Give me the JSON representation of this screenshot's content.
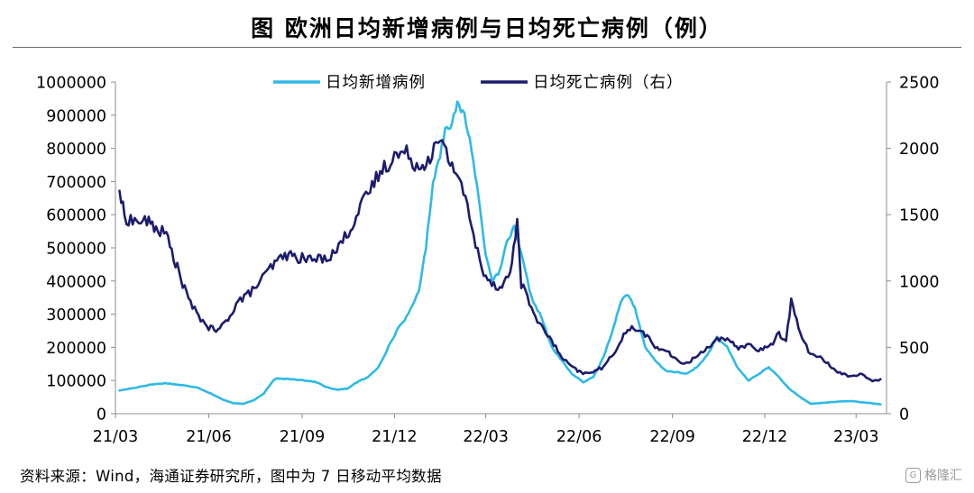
{
  "title": "图  欧洲日均新增病例与日均死亡病例（例）",
  "source": "资料来源：Wind，海通证券研究所，图中为 7 日移动平均数据",
  "watermark": "格隆汇",
  "colors": {
    "new_cases": "#2fb9e6",
    "deaths": "#1c1c6e",
    "axis": "#8c8c8c"
  },
  "chart_data": {
    "type": "line",
    "x_ticks": [
      "21/03",
      "21/06",
      "21/09",
      "21/12",
      "22/03",
      "22/06",
      "22/09",
      "22/12",
      "23/03"
    ],
    "x_range": [
      "2021-03-01",
      "2023-03-31"
    ],
    "y_left": {
      "min": 0,
      "max": 1000000,
      "ticks": [
        0,
        100000,
        200000,
        300000,
        400000,
        500000,
        600000,
        700000,
        800000,
        900000,
        1000000
      ]
    },
    "y_right": {
      "min": 0,
      "max": 2500,
      "ticks": [
        0,
        500,
        1000,
        1500,
        2000,
        2500
      ]
    },
    "legend_position": "top-center",
    "grid": false,
    "series": [
      {
        "name": "日均新增病例",
        "axis": "left",
        "x": [
          "2021-03-05",
          "2021-03-20",
          "2021-04-05",
          "2021-04-20",
          "2021-05-05",
          "2021-05-20",
          "2021-06-05",
          "2021-06-15",
          "2021-06-25",
          "2021-07-05",
          "2021-07-15",
          "2021-07-25",
          "2021-08-05",
          "2021-08-20",
          "2021-09-05",
          "2021-09-15",
          "2021-09-25",
          "2021-10-05",
          "2021-10-15",
          "2021-10-25",
          "2021-11-05",
          "2021-11-15",
          "2021-11-25",
          "2021-12-05",
          "2021-12-15",
          "2021-12-25",
          "2022-01-01",
          "2022-01-08",
          "2022-01-15",
          "2022-01-20",
          "2022-01-25",
          "2022-02-01",
          "2022-02-08",
          "2022-02-15",
          "2022-02-22",
          "2022-03-01",
          "2022-03-08",
          "2022-03-15",
          "2022-03-22",
          "2022-03-29",
          "2022-04-05",
          "2022-04-15",
          "2022-04-25",
          "2022-05-05",
          "2022-05-15",
          "2022-05-25",
          "2022-06-05",
          "2022-06-15",
          "2022-06-25",
          "2022-07-05",
          "2022-07-12",
          "2022-07-19",
          "2022-07-26",
          "2022-08-05",
          "2022-08-15",
          "2022-08-25",
          "2022-09-05",
          "2022-09-15",
          "2022-09-25",
          "2022-10-05",
          "2022-10-15",
          "2022-10-25",
          "2022-11-05",
          "2022-11-15",
          "2022-11-25",
          "2022-12-05",
          "2022-12-15",
          "2022-12-25",
          "2023-01-05",
          "2023-01-15",
          "2023-01-25",
          "2023-02-05",
          "2023-02-15",
          "2023-02-25",
          "2023-03-05",
          "2023-03-15",
          "2023-03-25"
        ],
        "values": [
          70000,
          78000,
          88000,
          92000,
          86000,
          80000,
          58000,
          42000,
          32000,
          30000,
          40000,
          60000,
          105000,
          105000,
          100000,
          95000,
          80000,
          72000,
          75000,
          95000,
          110000,
          140000,
          200000,
          260000,
          300000,
          370000,
          500000,
          700000,
          780000,
          860000,
          870000,
          930000,
          900000,
          800000,
          650000,
          480000,
          400000,
          430000,
          520000,
          560000,
          480000,
          350000,
          290000,
          200000,
          160000,
          120000,
          95000,
          110000,
          170000,
          260000,
          340000,
          360000,
          320000,
          200000,
          160000,
          130000,
          125000,
          120000,
          140000,
          175000,
          230000,
          200000,
          135000,
          100000,
          120000,
          140000,
          110000,
          75000,
          50000,
          30000,
          32000,
          35000,
          37000,
          38000,
          35000,
          32000,
          28000
        ]
      },
      {
        "name": "日均死亡病例（右）",
        "axis": "right",
        "x": [
          "2021-03-05",
          "2021-03-10",
          "2021-03-20",
          "2021-04-01",
          "2021-04-10",
          "2021-04-20",
          "2021-05-01",
          "2021-05-10",
          "2021-05-20",
          "2021-06-01",
          "2021-06-10",
          "2021-06-20",
          "2021-06-30",
          "2021-07-10",
          "2021-07-20",
          "2021-08-01",
          "2021-08-15",
          "2021-09-01",
          "2021-09-15",
          "2021-10-01",
          "2021-10-15",
          "2021-11-01",
          "2021-11-15",
          "2021-12-01",
          "2021-12-15",
          "2021-12-25",
          "2022-01-05",
          "2022-01-15",
          "2022-01-25",
          "2022-02-05",
          "2022-02-15",
          "2022-02-25",
          "2022-03-05",
          "2022-03-15",
          "2022-03-25",
          "2022-04-01",
          "2022-04-05",
          "2022-04-15",
          "2022-04-25",
          "2022-05-05",
          "2022-05-15",
          "2022-05-25",
          "2022-06-05",
          "2022-06-15",
          "2022-06-25",
          "2022-07-05",
          "2022-07-15",
          "2022-07-25",
          "2022-08-05",
          "2022-08-15",
          "2022-08-25",
          "2022-09-05",
          "2022-09-15",
          "2022-09-25",
          "2022-10-05",
          "2022-10-15",
          "2022-10-25",
          "2022-11-05",
          "2022-11-15",
          "2022-11-25",
          "2022-12-05",
          "2022-12-15",
          "2022-12-22",
          "2022-12-27",
          "2023-01-05",
          "2023-01-15",
          "2023-01-25",
          "2023-02-05",
          "2023-02-15",
          "2023-02-25",
          "2023-03-05",
          "2023-03-15",
          "2023-03-25"
        ],
        "values": [
          1680,
          1480,
          1450,
          1450,
          1400,
          1350,
          1100,
          900,
          750,
          650,
          620,
          720,
          850,
          900,
          980,
          1100,
          1200,
          1170,
          1160,
          1200,
          1350,
          1600,
          1800,
          1950,
          1960,
          1850,
          1950,
          2050,
          1900,
          1750,
          1400,
          1100,
          1000,
          950,
          1050,
          1450,
          980,
          800,
          650,
          550,
          420,
          350,
          300,
          320,
          350,
          450,
          600,
          650,
          600,
          500,
          480,
          400,
          380,
          430,
          500,
          560,
          550,
          500,
          520,
          480,
          500,
          600,
          560,
          850,
          600,
          450,
          420,
          350,
          300,
          280,
          300,
          250,
          260
        ]
      }
    ]
  }
}
